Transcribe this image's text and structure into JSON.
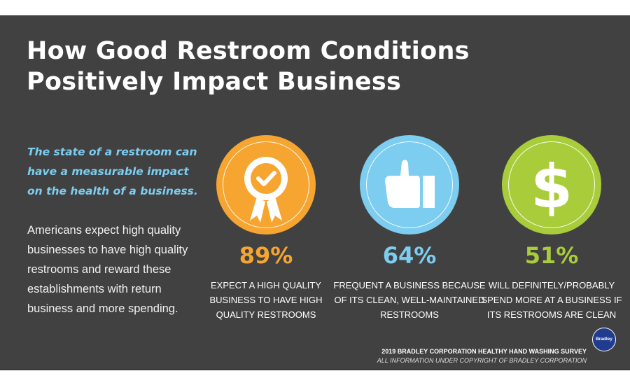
{
  "title_line1": "How Good Restroom Conditions",
  "title_line2": "Positively Impact Business",
  "lead": "The state of a restroom can have a measurable impact on the health of a business.",
  "body": "Americans expect high quality businesses to have high quality restrooms and reward these establishments with return business and more spending.",
  "stats": [
    {
      "icon": "award-ribbon-check-icon",
      "color": "#f6a531",
      "percent": "89%",
      "text": "Expect a high quality business to have high quality restrooms"
    },
    {
      "icon": "thumbs-up-icon",
      "color": "#7ccdf0",
      "percent": "64%",
      "text": "Frequent a business because of its clean, well-maintained restrooms"
    },
    {
      "icon": "dollar-sign-icon",
      "color": "#a9cc3b",
      "percent": "51%",
      "text": "Will definitely/probably spend more at a business if its restrooms are clean"
    }
  ],
  "footer": {
    "source": "2019 BRADLEY CORPORATION HEALTHY HAND WASHING SURVEY",
    "copyright": "ALL INFORMATION UNDER COPYRIGHT OF BRADLEY CORPORATION",
    "logo_text": "Bradley"
  },
  "colors": {
    "background": "#414142",
    "accent_blue": "#7ccdf0"
  }
}
